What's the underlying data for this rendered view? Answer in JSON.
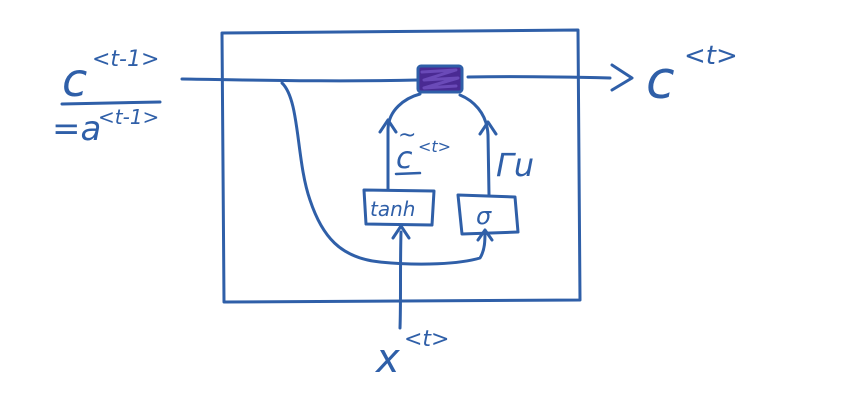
{
  "diagram": {
    "ink_color": "#2f5fa8",
    "gate_fill_color": "#4a2a93",
    "labels": {
      "c_prev_base": "c",
      "c_prev_super": "<t-1>",
      "a_prev": "=a",
      "a_prev_super": "<t-1>",
      "c_out_base": "c",
      "c_out_super": "<t>",
      "x_base": "x",
      "x_super": "<t>",
      "c_tilde": "c",
      "c_tilde_tilde": "~",
      "c_tilde_super": "<t>",
      "gamma_u": "Γu",
      "tanh_box": "tanh",
      "sigma_box": "σ"
    }
  }
}
